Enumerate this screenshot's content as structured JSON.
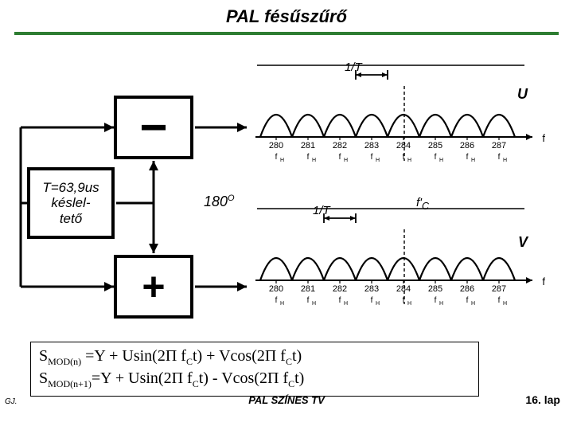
{
  "title": "PAL fésűszűrő",
  "colors": {
    "underline": "#2e7d32",
    "stroke": "#000000",
    "bg": "#ffffff"
  },
  "blocks": {
    "minus": "−",
    "plus": "+",
    "delay_text": "T=63,9us\nkéslel-\ntető",
    "phase": "180",
    "phase_sup": "O"
  },
  "spectra": {
    "over_t_label": "1/T",
    "u_letter": "U",
    "v_letter": "V",
    "fc_label": "f'",
    "fc_sub": "C",
    "f_axis_end": "f",
    "xticks": [
      "280",
      "281",
      "282",
      "283",
      "284",
      "285",
      "286",
      "287"
    ],
    "fh_label": "f",
    "fh_sub": "H",
    "top_marker_index": 3,
    "bot_marker_index": 2,
    "lobe_amp": 28,
    "baseline_y": 92,
    "lobe_width": 40,
    "dashed_x": 195,
    "style": {
      "lobe_stroke_width": 2.2,
      "axis_stroke_width": 2,
      "dash": "4,3"
    }
  },
  "formulas": {
    "line1_pre": "S",
    "line1_sub": "MOD(n)",
    "line1_body": "  =Y + Usin(2Π f",
    "line1_sub2": "C",
    "line1_mid": "t) + Vcos(2Π f",
    "line1_sub3": "C",
    "line1_end": "t)",
    "line2_pre": "S",
    "line2_sub": "MOD(n+1)",
    "line2_body": "=Y + Usin(2Π f",
    "line2_sub2": "C",
    "line2_mid": "t)  - Vcos(2Π f",
    "line2_sub3": "C",
    "line2_end": "t)"
  },
  "footer": {
    "left": "GJ.",
    "center": "PAL SZÍNES TV",
    "right": "16. lap"
  }
}
